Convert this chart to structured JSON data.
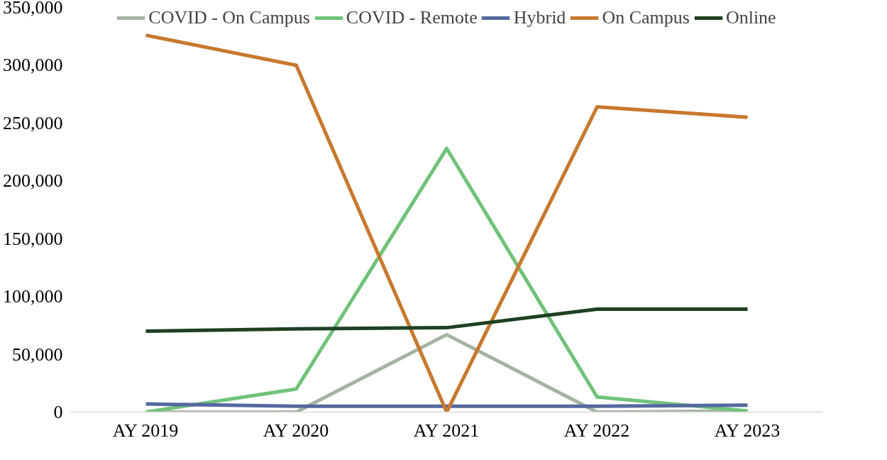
{
  "chart_data": {
    "type": "line",
    "categories": [
      "AY 2019",
      "AY 2020",
      "AY 2021",
      "AY 2022",
      "AY 2023"
    ],
    "series": [
      {
        "name": "COVID - On Campus",
        "color": "#a5b4a2",
        "values": [
          0,
          0,
          67000,
          0,
          1000
        ]
      },
      {
        "name": "COVID - Remote",
        "color": "#70c27a",
        "values": [
          0,
          20000,
          228000,
          13000,
          1000
        ]
      },
      {
        "name": "Hybrid",
        "color": "#5469a0",
        "values": [
          7000,
          5000,
          5000,
          5000,
          6000
        ]
      },
      {
        "name": "On Campus",
        "color": "#c8782e",
        "values": [
          326000,
          300000,
          0,
          264000,
          255000
        ]
      },
      {
        "name": "Online",
        "color": "#1f4023",
        "values": [
          70000,
          72000,
          73000,
          89000,
          89000
        ]
      }
    ],
    "ylim": [
      0,
      350000
    ],
    "yticks": [
      {
        "value": 0,
        "label": "0"
      },
      {
        "value": 50000,
        "label": "50,000"
      },
      {
        "value": 100000,
        "label": "100,000"
      },
      {
        "value": 150000,
        "label": "150,000"
      },
      {
        "value": 200000,
        "label": "200,000"
      },
      {
        "value": 250000,
        "label": "250,000"
      },
      {
        "value": 300000,
        "label": "300,000"
      },
      {
        "value": 350000,
        "label": "350,000"
      }
    ],
    "grid": false,
    "legend": "top",
    "marker": "none",
    "line_style": "solid"
  }
}
